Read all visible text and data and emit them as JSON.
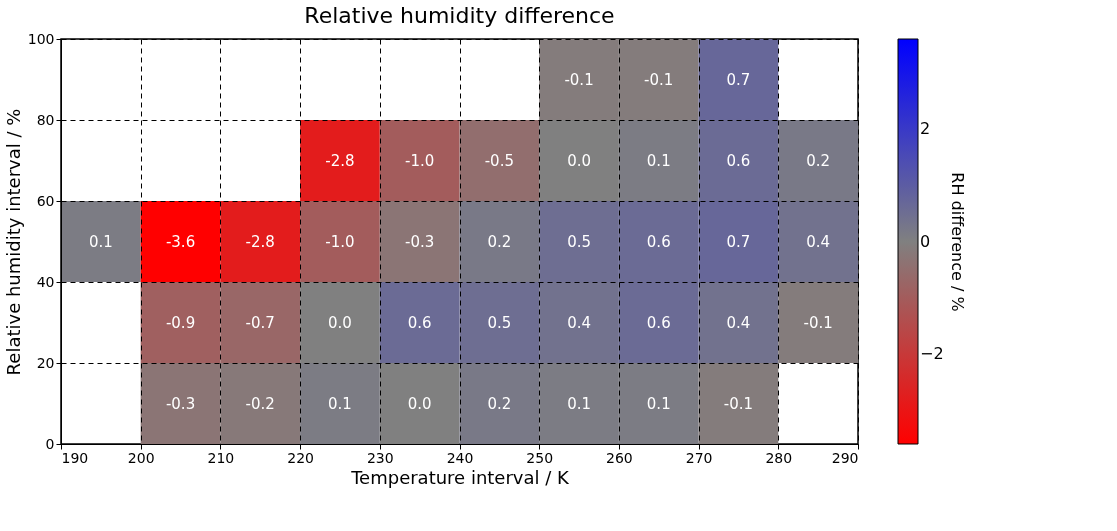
{
  "chart_data": {
    "type": "heatmap",
    "title": "Relative humidity difference",
    "xlabel": "Temperature interval / K",
    "ylabel": "Relative humidity interval / %",
    "clabel": "RH difference / %",
    "xlim": [
      190,
      290
    ],
    "xticks": [
      190,
      200,
      210,
      220,
      230,
      240,
      250,
      260,
      270,
      280,
      290
    ],
    "ylim": [
      0,
      100
    ],
    "yticks": [
      0,
      20,
      40,
      60,
      80,
      100
    ],
    "clim": [
      -3.6,
      3.6
    ],
    "cticks": [
      -2,
      0,
      2
    ],
    "grid": true,
    "line_style": "dashed",
    "cells": [
      [
        null,
        null,
        null,
        null,
        null,
        null,
        -0.1,
        -0.1,
        0.7,
        null
      ],
      [
        null,
        null,
        null,
        -2.8,
        -1.0,
        -0.5,
        0.0,
        0.1,
        0.6,
        0.2
      ],
      [
        0.1,
        -3.6,
        -2.8,
        -1.0,
        -0.3,
        0.2,
        0.5,
        0.6,
        0.7,
        0.4
      ],
      [
        null,
        -0.9,
        -0.7,
        0.0,
        0.6,
        0.5,
        0.4,
        0.6,
        0.4,
        -0.1
      ],
      [
        null,
        -0.3,
        -0.2,
        0.1,
        0.0,
        0.2,
        0.1,
        0.1,
        -0.1,
        null
      ]
    ],
    "cell_labels": [
      [
        null,
        null,
        null,
        null,
        null,
        null,
        "-0.1",
        "-0.1",
        "0.7",
        null
      ],
      [
        null,
        null,
        null,
        "-2.8",
        "-1.0",
        "-0.5",
        "0.0",
        "0.1",
        "0.6",
        "0.2"
      ],
      [
        "0.1",
        "-3.6",
        "-2.8",
        "-1.0",
        "-0.3",
        "0.2",
        "0.5",
        "0.6",
        "0.7",
        "0.4"
      ],
      [
        null,
        "-0.9",
        "-0.7",
        "0.0",
        "0.6",
        "0.5",
        "0.4",
        "0.6",
        "0.4",
        "-0.1"
      ],
      [
        null,
        "-0.3",
        "-0.2",
        "0.1",
        "0.0",
        "0.2",
        "0.1",
        "0.1",
        "-0.1",
        null
      ]
    ]
  }
}
